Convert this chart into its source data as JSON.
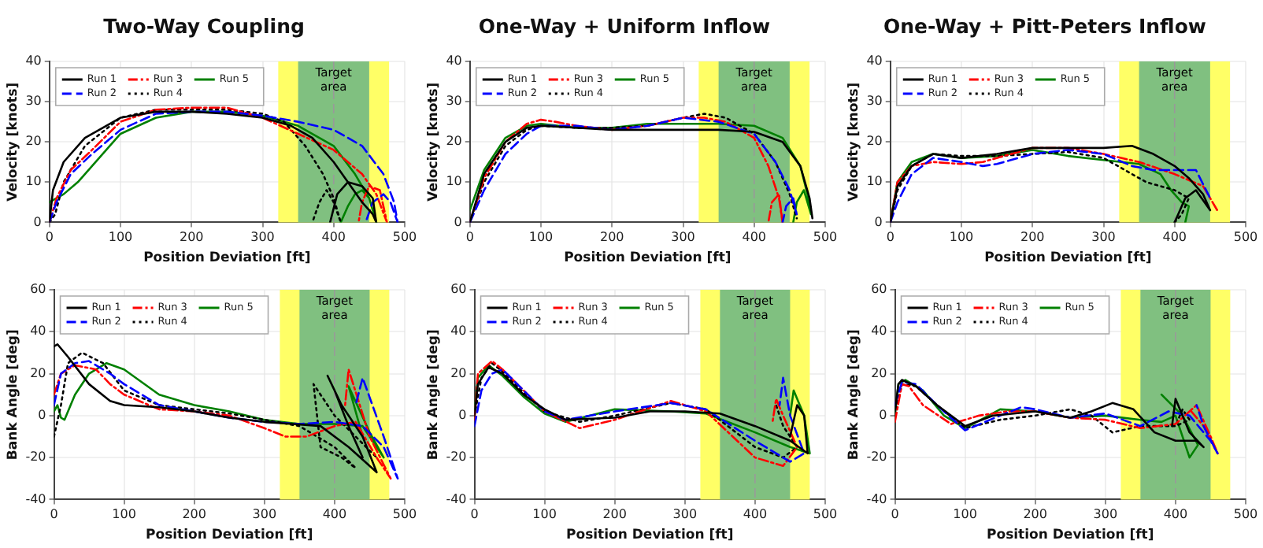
{
  "chart_data": [
    {
      "type": "line",
      "title": "Two-Way Coupling",
      "xlabel": "Position Deviation [ft]",
      "ylabel": "Velocity [knots]",
      "xlim": [
        0,
        500
      ],
      "xticks": [
        0,
        100,
        200,
        300,
        400,
        500
      ],
      "ylim": [
        0,
        40
      ],
      "yticks": [
        0,
        10,
        20,
        30,
        40
      ],
      "grid": true,
      "legend": "top left",
      "marker": "none",
      "bands": [
        {
          "axis": "x",
          "from": 322,
          "to": 478,
          "color": "#ffff66"
        },
        {
          "axis": "x",
          "from": 350,
          "to": 450,
          "color": "#80c080",
          "label": "Target area"
        }
      ],
      "ref_lines": [
        {
          "axis": "x",
          "value": 400,
          "color": "#999999",
          "line_style": "dashed"
        }
      ],
      "series": [
        {
          "name": "Run 1",
          "color": "#000000",
          "line_style": "solid",
          "x": [
            0,
            5,
            20,
            50,
            100,
            150,
            200,
            250,
            300,
            340,
            370,
            400,
            420,
            440,
            455,
            460,
            455,
            440,
            420,
            405,
            395
          ],
          "values": [
            0,
            8,
            15,
            21,
            26,
            27.5,
            27.5,
            27,
            26,
            24,
            21,
            15,
            10,
            5,
            2,
            0,
            6,
            9,
            10,
            7,
            0
          ]
        },
        {
          "name": "Run 2",
          "color": "#0000ff",
          "line_style": "dashed",
          "x": [
            0,
            10,
            30,
            60,
            100,
            150,
            200,
            250,
            300,
            350,
            400,
            440,
            470,
            485,
            490,
            480,
            470,
            455,
            445
          ],
          "values": [
            0,
            5,
            12,
            17,
            23,
            27,
            27.5,
            27.5,
            26.5,
            25,
            23,
            19,
            12,
            5,
            0,
            5,
            7,
            5,
            0
          ]
        },
        {
          "name": "Run 3",
          "color": "#ff0000",
          "line_style": "dashdot",
          "x": [
            0,
            10,
            30,
            60,
            100,
            150,
            200,
            250,
            300,
            350,
            400,
            440,
            460,
            475,
            465,
            450,
            440,
            435
          ],
          "values": [
            0,
            6,
            13,
            18,
            25,
            28,
            28.5,
            28.5,
            26,
            22,
            18,
            12,
            7,
            0,
            8,
            9,
            5,
            0
          ]
        },
        {
          "name": "Run 4",
          "color": "#000000",
          "line_style": "dotted",
          "x": [
            0,
            8,
            20,
            50,
            100,
            150,
            200,
            250,
            300,
            330,
            360,
            385,
            400,
            410,
            400,
            390,
            380,
            370
          ],
          "values": [
            0,
            2,
            10,
            19,
            26,
            28,
            28,
            28,
            27,
            25,
            19,
            12,
            6,
            0,
            5,
            8,
            5,
            0
          ]
        },
        {
          "name": "Run 5",
          "color": "#008000",
          "line_style": "solid",
          "x": [
            0,
            10,
            20,
            40,
            60,
            80,
            100,
            150,
            200,
            250,
            300,
            350,
            400,
            430,
            450,
            460,
            450,
            440,
            430,
            420,
            410
          ],
          "values": [
            5,
            6,
            7,
            10,
            14,
            18,
            22,
            26,
            27.5,
            27.5,
            26.5,
            24,
            19,
            12,
            6,
            0,
            6,
            8,
            7,
            4,
            0
          ]
        }
      ]
    },
    {
      "type": "line",
      "title": "One-Way + Uniform Inflow",
      "xlabel": "Position Deviation [ft]",
      "ylabel": "Velocity [knots]",
      "xlim": [
        0,
        500
      ],
      "xticks": [
        0,
        100,
        200,
        300,
        400,
        500
      ],
      "ylim": [
        0,
        40
      ],
      "yticks": [
        0,
        10,
        20,
        30,
        40
      ],
      "grid": true,
      "legend": "top left",
      "marker": "none",
      "bands": [
        {
          "axis": "x",
          "from": 322,
          "to": 478,
          "color": "#ffff66"
        },
        {
          "axis": "x",
          "from": 350,
          "to": 450,
          "color": "#80c080",
          "label": "Target area"
        }
      ],
      "ref_lines": [
        {
          "axis": "x",
          "value": 400,
          "color": "#999999",
          "line_style": "dashed"
        }
      ],
      "series": [
        {
          "name": "Run 1",
          "color": "#000000",
          "line_style": "solid",
          "x": [
            0,
            20,
            50,
            80,
            100,
            150,
            200,
            250,
            300,
            350,
            400,
            440,
            465,
            478,
            482
          ],
          "values": [
            0,
            12,
            20,
            23.5,
            24,
            23.5,
            23,
            23,
            23,
            23,
            22.5,
            20,
            14,
            6,
            1
          ]
        },
        {
          "name": "Run 2",
          "color": "#0000ff",
          "line_style": "dashed",
          "x": [
            0,
            20,
            50,
            80,
            100,
            150,
            200,
            250,
            300,
            350,
            400,
            430,
            450,
            460,
            455,
            445,
            440
          ],
          "values": [
            0,
            8,
            17,
            22,
            24,
            24,
            23,
            24,
            26,
            25,
            22,
            15,
            8,
            2,
            6,
            4,
            0
          ]
        },
        {
          "name": "Run 3",
          "color": "#ff0000",
          "line_style": "dashdot",
          "x": [
            0,
            20,
            50,
            80,
            100,
            120,
            150,
            200,
            250,
            300,
            330,
            360,
            400,
            420,
            435,
            440,
            435,
            425,
            420
          ],
          "values": [
            0,
            11,
            20,
            24.5,
            25.5,
            25,
            24,
            23,
            24,
            26,
            26,
            25,
            21,
            14,
            6,
            0,
            7,
            5,
            0
          ]
        },
        {
          "name": "Run 4",
          "color": "#000000",
          "line_style": "dotted",
          "x": [
            0,
            20,
            50,
            80,
            100,
            150,
            200,
            250,
            300,
            330,
            360,
            400,
            430,
            450,
            460
          ],
          "values": [
            0,
            10,
            19,
            23,
            24,
            23.5,
            23.5,
            24,
            26,
            27,
            26,
            22,
            15,
            7,
            1
          ]
        },
        {
          "name": "Run 5",
          "color": "#008000",
          "line_style": "solid",
          "x": [
            0,
            20,
            50,
            80,
            100,
            150,
            200,
            250,
            300,
            350,
            400,
            440,
            465,
            475,
            480,
            470,
            460,
            455
          ],
          "values": [
            3,
            13,
            21,
            24,
            24.5,
            23.5,
            23.5,
            24.5,
            24.5,
            24.5,
            24,
            21,
            14,
            7,
            2,
            8,
            5,
            0
          ]
        }
      ]
    },
    {
      "type": "line",
      "title": "One-Way + Pitt-Peters Inflow",
      "xlabel": "Position Deviation [ft]",
      "ylabel": "Velocity [knots]",
      "xlim": [
        0,
        500
      ],
      "xticks": [
        0,
        100,
        200,
        300,
        400,
        500
      ],
      "ylim": [
        0,
        40
      ],
      "yticks": [
        0,
        10,
        20,
        30,
        40
      ],
      "grid": true,
      "legend": "top left",
      "marker": "none",
      "bands": [
        {
          "axis": "x",
          "from": 322,
          "to": 478,
          "color": "#ffff66"
        },
        {
          "axis": "x",
          "from": 350,
          "to": 450,
          "color": "#80c080",
          "label": "Target area"
        }
      ],
      "ref_lines": [
        {
          "axis": "x",
          "value": 400,
          "color": "#999999",
          "line_style": "dashed"
        }
      ],
      "series": [
        {
          "name": "Run 1",
          "color": "#000000",
          "line_style": "solid",
          "x": [
            0,
            10,
            30,
            60,
            100,
            150,
            200,
            250,
            300,
            340,
            370,
            400,
            420,
            440,
            450,
            430,
            415,
            405,
            400
          ],
          "values": [
            0,
            9,
            14,
            17,
            16,
            17,
            18.5,
            18.5,
            18.5,
            19,
            17,
            14,
            11,
            7,
            3,
            8,
            6,
            2,
            0
          ]
        },
        {
          "name": "Run 2",
          "color": "#0000ff",
          "line_style": "dashed",
          "x": [
            0,
            10,
            30,
            60,
            100,
            130,
            150,
            200,
            250,
            300,
            340,
            370,
            400,
            430,
            450
          ],
          "values": [
            0,
            5,
            12,
            16,
            15,
            14,
            14.5,
            17,
            18,
            17,
            14,
            13,
            13,
            13,
            6
          ]
        },
        {
          "name": "Run 3",
          "color": "#ff0000",
          "line_style": "dashdot",
          "x": [
            0,
            10,
            30,
            60,
            100,
            130,
            200,
            250,
            300,
            350,
            400,
            440,
            460
          ],
          "values": [
            0,
            10,
            14,
            15,
            14.5,
            15,
            18.5,
            18.5,
            17,
            15,
            12,
            9,
            3
          ]
        },
        {
          "name": "Run 4",
          "color": "#000000",
          "line_style": "dotted",
          "x": [
            0,
            10,
            30,
            60,
            100,
            150,
            200,
            250,
            300,
            330,
            360,
            400,
            420,
            410,
            400
          ],
          "values": [
            0,
            8,
            14,
            17,
            16.5,
            16.5,
            17,
            17.5,
            16,
            13,
            10,
            8,
            6,
            2,
            0
          ]
        },
        {
          "name": "Run 5",
          "color": "#008000",
          "line_style": "solid",
          "x": [
            0,
            10,
            30,
            60,
            100,
            150,
            200,
            250,
            300,
            350,
            380,
            395,
            410,
            420,
            415
          ],
          "values": [
            0,
            10,
            15,
            17,
            16,
            16.5,
            18,
            16.5,
            15.5,
            14.5,
            12,
            8,
            5,
            4,
            0
          ]
        }
      ]
    },
    {
      "type": "line",
      "xlabel": "Position Deviation [ft]",
      "ylabel": "Bank Angle [deg]",
      "xlim": [
        0,
        500
      ],
      "xticks": [
        0,
        100,
        200,
        300,
        400,
        500
      ],
      "ylim": [
        -40,
        60
      ],
      "yticks": [
        -40,
        -20,
        0,
        20,
        40,
        60
      ],
      "grid": true,
      "legend": "top left",
      "marker": "none",
      "bands": [
        {
          "axis": "x",
          "from": 322,
          "to": 478,
          "color": "#ffff66"
        },
        {
          "axis": "x",
          "from": 350,
          "to": 450,
          "color": "#80c080",
          "label": "Target area"
        }
      ],
      "ref_lines": [
        {
          "axis": "x",
          "value": 400,
          "color": "#999999",
          "line_style": "dashed"
        }
      ],
      "series": [
        {
          "name": "Run 1",
          "color": "#000000",
          "line_style": "solid",
          "x": [
            0,
            5,
            20,
            50,
            80,
            100,
            150,
            200,
            250,
            300,
            340,
            380,
            420,
            460,
            440,
            410,
            390,
            400,
            420,
            440
          ],
          "values": [
            33,
            34,
            28,
            15,
            7,
            5,
            4,
            2,
            -1,
            -3,
            -4,
            -5,
            -15,
            -27,
            -10,
            5,
            19,
            12,
            -5,
            -20
          ]
        },
        {
          "name": "Run 2",
          "color": "#0000ff",
          "line_style": "dashed",
          "x": [
            0,
            10,
            30,
            50,
            80,
            100,
            150,
            200,
            250,
            300,
            350,
            400,
            440,
            470,
            490,
            470,
            440,
            430
          ],
          "values": [
            5,
            20,
            25,
            26,
            20,
            15,
            5,
            2,
            -1,
            -3,
            -4,
            -3,
            -5,
            -15,
            -30,
            -10,
            18,
            5
          ]
        },
        {
          "name": "Run 3",
          "color": "#ff0000",
          "line_style": "dashdot",
          "x": [
            0,
            10,
            30,
            60,
            80,
            100,
            150,
            200,
            250,
            300,
            330,
            360,
            400,
            430,
            460,
            480,
            450,
            420,
            415
          ],
          "values": [
            10,
            20,
            24,
            22,
            15,
            10,
            3,
            2,
            0,
            -6,
            -10,
            -10,
            -5,
            -3,
            -20,
            -30,
            -10,
            22,
            5
          ]
        },
        {
          "name": "Run 4",
          "color": "#000000",
          "line_style": "dotted",
          "x": [
            0,
            10,
            20,
            40,
            70,
            100,
            150,
            200,
            250,
            300,
            350,
            400,
            430,
            410,
            380,
            370,
            400,
            430,
            460
          ],
          "values": [
            -10,
            5,
            25,
            30,
            25,
            12,
            5,
            3,
            1,
            -2,
            -5,
            -15,
            -25,
            -20,
            -15,
            15,
            0,
            -10,
            -20
          ]
        },
        {
          "name": "Run 5",
          "color": "#008000",
          "line_style": "solid",
          "x": [
            0,
            5,
            10,
            15,
            30,
            50,
            75,
            100,
            150,
            200,
            250,
            300,
            350,
            400,
            440,
            470,
            450,
            420,
            440
          ],
          "values": [
            2,
            5,
            -1,
            -2,
            10,
            20,
            25,
            22,
            10,
            5,
            2,
            -2,
            -4,
            -4,
            -5,
            -20,
            -8,
            14,
            -10
          ]
        }
      ]
    },
    {
      "type": "line",
      "xlabel": "Position Deviation [ft]",
      "ylabel": "Bank Angle [deg]",
      "xlim": [
        0,
        500
      ],
      "xticks": [
        0,
        100,
        200,
        300,
        400,
        500
      ],
      "ylim": [
        -40,
        60
      ],
      "yticks": [
        -40,
        -20,
        0,
        20,
        40,
        60
      ],
      "grid": true,
      "legend": "top left",
      "marker": "none",
      "bands": [
        {
          "axis": "x",
          "from": 322,
          "to": 478,
          "color": "#ffff66"
        },
        {
          "axis": "x",
          "from": 350,
          "to": 450,
          "color": "#80c080",
          "label": "Target area"
        }
      ],
      "ref_lines": [
        {
          "axis": "x",
          "value": 400,
          "color": "#999999",
          "line_style": "dashed"
        }
      ],
      "series": [
        {
          "name": "Run 1",
          "color": "#000000",
          "line_style": "solid",
          "x": [
            0,
            5,
            20,
            40,
            70,
            100,
            130,
            200,
            250,
            300,
            350,
            400,
            450,
            475,
            470,
            460,
            450
          ],
          "values": [
            0,
            15,
            23,
            20,
            10,
            3,
            -2,
            -1,
            2,
            2,
            1,
            -5,
            -12,
            -18,
            0,
            5,
            -10
          ]
        },
        {
          "name": "Run 2",
          "color": "#0000ff",
          "line_style": "dashed",
          "x": [
            0,
            10,
            25,
            40,
            70,
            100,
            130,
            200,
            280,
            330,
            400,
            450,
            470,
            450,
            440,
            435
          ],
          "values": [
            -5,
            12,
            20,
            22,
            12,
            2,
            -2,
            2,
            6,
            3,
            -12,
            -22,
            -18,
            0,
            18,
            5
          ]
        },
        {
          "name": "Run 3",
          "color": "#ff0000",
          "line_style": "dashdot",
          "x": [
            0,
            5,
            25,
            40,
            70,
            100,
            150,
            200,
            280,
            330,
            400,
            440,
            460,
            440,
            430,
            425
          ],
          "values": [
            -2,
            20,
            26,
            22,
            12,
            2,
            -6,
            -2,
            7,
            2,
            -20,
            -24,
            -15,
            0,
            8,
            -3
          ]
        },
        {
          "name": "Run 4",
          "color": "#000000",
          "line_style": "dotted",
          "x": [
            0,
            10,
            25,
            40,
            70,
            100,
            150,
            200,
            280,
            330,
            400,
            440,
            460,
            440,
            430
          ],
          "values": [
            0,
            18,
            25,
            21,
            11,
            2,
            -3,
            0,
            6,
            3,
            -15,
            -20,
            -15,
            -5,
            5
          ]
        },
        {
          "name": "Run 5",
          "color": "#008000",
          "line_style": "solid",
          "x": [
            0,
            5,
            20,
            40,
            70,
            100,
            130,
            200,
            280,
            330,
            400,
            450,
            478,
            470,
            455,
            450
          ],
          "values": [
            2,
            18,
            24,
            19,
            9,
            1,
            -3,
            3,
            2,
            1,
            -8,
            -15,
            -18,
            0,
            12,
            0
          ]
        }
      ]
    },
    {
      "type": "line",
      "xlabel": "Position Deviation [ft]",
      "ylabel": "Bank Angle [deg]",
      "xlim": [
        0,
        500
      ],
      "xticks": [
        0,
        100,
        200,
        300,
        400,
        500
      ],
      "ylim": [
        -40,
        60
      ],
      "yticks": [
        -40,
        -20,
        0,
        20,
        40,
        60
      ],
      "grid": true,
      "legend": "top left",
      "marker": "none",
      "bands": [
        {
          "axis": "x",
          "from": 322,
          "to": 478,
          "color": "#ffff66"
        },
        {
          "axis": "x",
          "from": 350,
          "to": 450,
          "color": "#80c080",
          "label": "Target area"
        }
      ],
      "ref_lines": [
        {
          "axis": "x",
          "value": 400,
          "color": "#999999",
          "line_style": "dashed"
        }
      ],
      "series": [
        {
          "name": "Run 1",
          "color": "#000000",
          "line_style": "solid",
          "x": [
            0,
            5,
            10,
            30,
            60,
            100,
            140,
            200,
            250,
            280,
            310,
            340,
            370,
            400,
            430,
            440,
            420,
            400,
            395
          ],
          "values": [
            2,
            15,
            17,
            14,
            5,
            -5,
            0,
            2,
            -1,
            2,
            6,
            3,
            -8,
            -12,
            -12,
            -15,
            -8,
            8,
            -5
          ]
        },
        {
          "name": "Run 2",
          "color": "#0000ff",
          "line_style": "dashed",
          "x": [
            0,
            10,
            30,
            60,
            100,
            150,
            180,
            200,
            250,
            300,
            350,
            390,
            420,
            450,
            460,
            440,
            430
          ],
          "values": [
            5,
            16,
            15,
            5,
            -7,
            0,
            4,
            3,
            -1,
            1,
            -5,
            2,
            0,
            -12,
            -18,
            -5,
            5
          ]
        },
        {
          "name": "Run 3",
          "color": "#ff0000",
          "line_style": "dashdot",
          "x": [
            0,
            10,
            20,
            40,
            80,
            120,
            160,
            200,
            250,
            300,
            350,
            400,
            430,
            450,
            460,
            440,
            420
          ],
          "values": [
            -3,
            15,
            14,
            5,
            -4,
            0,
            2,
            2,
            -1,
            -2,
            -6,
            -4,
            5,
            -10,
            -18,
            -5,
            3
          ]
        },
        {
          "name": "Run 4",
          "color": "#000000",
          "line_style": "dotted",
          "x": [
            0,
            10,
            30,
            60,
            100,
            150,
            200,
            250,
            280,
            310,
            350,
            400,
            420,
            410,
            400
          ],
          "values": [
            0,
            15,
            14,
            5,
            -6,
            -2,
            0,
            3,
            0,
            -8,
            -5,
            -5,
            -2,
            3,
            -5
          ]
        },
        {
          "name": "Run 5",
          "color": "#008000",
          "line_style": "solid",
          "x": [
            0,
            5,
            15,
            40,
            70,
            100,
            150,
            200,
            250,
            300,
            350,
            380,
            400,
            420,
            432,
            410,
            380
          ],
          "values": [
            0,
            15,
            17,
            12,
            0,
            -6,
            3,
            2,
            -1,
            0,
            -2,
            -3,
            0,
            -20,
            -14,
            0,
            10
          ]
        }
      ]
    }
  ]
}
